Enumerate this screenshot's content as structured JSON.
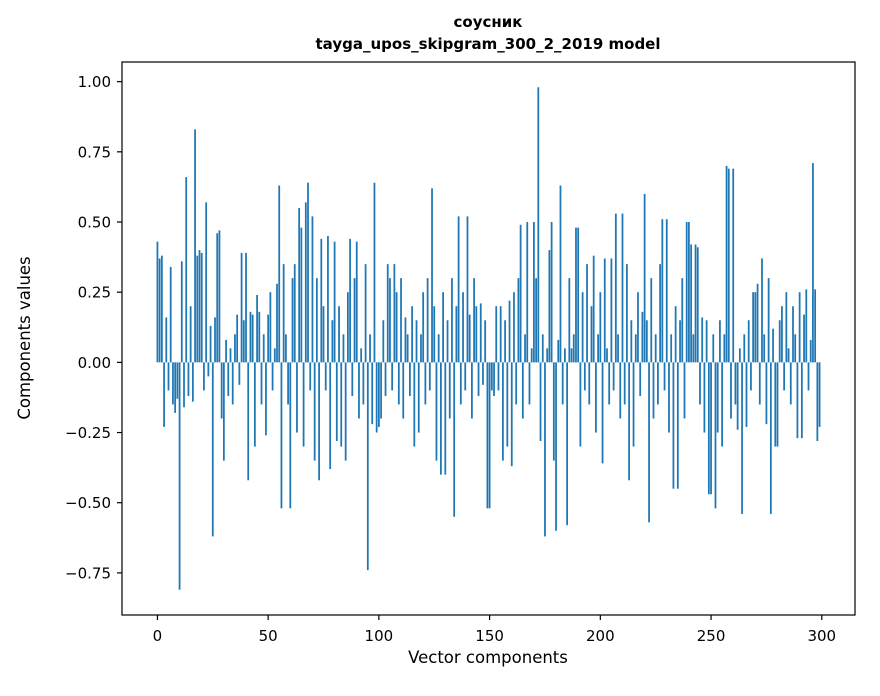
{
  "chart_data": {
    "type": "bar",
    "title_line1": "соусник",
    "title_line2": "tayga_upos_skipgram_300_2_2019 model",
    "xlabel": "Vector components",
    "ylabel": "Components values",
    "bar_color": "#1f77b4",
    "background_color": "#ffffff",
    "grid": false,
    "legend": "none",
    "xlim": [
      -16,
      315
    ],
    "ylim": [
      -0.9,
      1.07
    ],
    "x_ticks": [
      0,
      50,
      100,
      150,
      200,
      250,
      300
    ],
    "x_tick_labels": [
      "0",
      "50",
      "100",
      "150",
      "200",
      "250",
      "300"
    ],
    "y_ticks": [
      -0.75,
      -0.5,
      -0.25,
      0,
      0.25,
      0.5,
      0.75,
      1.0
    ],
    "y_tick_labels": [
      "−0.75",
      "−0.50",
      "−0.25",
      "0.00",
      "0.25",
      "0.50",
      "0.75",
      "1.00"
    ],
    "n_components": 300,
    "values": [
      0.43,
      0.37,
      0.38,
      -0.23,
      0.16,
      -0.1,
      0.34,
      -0.15,
      -0.18,
      -0.13,
      -0.81,
      0.36,
      -0.16,
      0.66,
      -0.12,
      0.2,
      -0.14,
      0.83,
      0.38,
      0.4,
      0.39,
      -0.1,
      0.57,
      -0.05,
      0.13,
      -0.62,
      0.16,
      0.46,
      0.47,
      -0.2,
      -0.35,
      0.08,
      -0.12,
      0.05,
      -0.15,
      0.1,
      0.17,
      -0.08,
      0.39,
      0.15,
      0.39,
      -0.42,
      0.18,
      0.17,
      -0.3,
      0.24,
      0.18,
      -0.15,
      0.1,
      -0.26,
      0.17,
      0.25,
      -0.1,
      0.05,
      0.28,
      0.63,
      -0.52,
      0.35,
      0.1,
      -0.15,
      -0.52,
      0.3,
      0.35,
      -0.25,
      0.55,
      0.48,
      -0.3,
      0.57,
      0.64,
      -0.1,
      0.52,
      -0.35,
      0.3,
      -0.42,
      0.44,
      0.2,
      -0.1,
      0.45,
      -0.38,
      0.15,
      0.43,
      -0.28,
      0.2,
      -0.3,
      0.1,
      -0.35,
      0.25,
      0.44,
      -0.12,
      0.3,
      0.43,
      -0.2,
      0.05,
      -0.15,
      0.35,
      -0.74,
      0.1,
      -0.22,
      0.64,
      -0.25,
      -0.23,
      -0.2,
      0.15,
      -0.12,
      0.35,
      0.3,
      -0.1,
      0.35,
      0.25,
      -0.15,
      0.3,
      -0.2,
      0.16,
      0.1,
      -0.12,
      0.2,
      -0.3,
      0.15,
      -0.25,
      0.1,
      0.25,
      -0.15,
      0.3,
      -0.1,
      0.62,
      0.2,
      -0.35,
      0.1,
      -0.4,
      0.25,
      -0.4,
      0.15,
      -0.2,
      0.3,
      -0.55,
      0.2,
      0.52,
      -0.15,
      0.25,
      -0.1,
      0.52,
      0.17,
      -0.2,
      0.3,
      0.2,
      -0.12,
      0.21,
      -0.08,
      0.15,
      -0.52,
      -0.52,
      -0.1,
      -0.12,
      0.2,
      -0.1,
      0.2,
      -0.35,
      0.15,
      -0.3,
      0.22,
      -0.37,
      0.25,
      -0.15,
      0.3,
      0.49,
      -0.2,
      0.1,
      0.5,
      -0.15,
      0.05,
      0.5,
      0.3,
      0.98,
      -0.28,
      0.1,
      -0.62,
      0.05,
      0.4,
      0.5,
      -0.35,
      -0.6,
      0.08,
      0.63,
      -0.15,
      0.05,
      -0.58,
      0.3,
      0.05,
      0.1,
      0.48,
      0.48,
      -0.3,
      0.25,
      -0.1,
      0.35,
      -0.15,
      0.2,
      0.38,
      -0.25,
      0.1,
      0.25,
      -0.36,
      0.37,
      0.05,
      -0.15,
      0.37,
      -0.1,
      0.53,
      0.1,
      -0.2,
      0.53,
      -0.15,
      0.35,
      -0.42,
      0.15,
      -0.3,
      0.1,
      0.25,
      -0.12,
      0.18,
      0.6,
      0.15,
      -0.57,
      0.3,
      -0.2,
      0.1,
      -0.15,
      0.35,
      0.51,
      -0.1,
      0.51,
      -0.25,
      0.1,
      -0.45,
      0.2,
      -0.45,
      0.15,
      0.3,
      -0.2,
      0.5,
      0.5,
      0.42,
      0.1,
      0.42,
      0.41,
      -0.15,
      0.16,
      -0.25,
      0.15,
      -0.47,
      -0.47,
      0.1,
      -0.52,
      -0.25,
      0.15,
      -0.3,
      0.1,
      0.7,
      0.69,
      -0.2,
      0.69,
      -0.15,
      -0.24,
      0.05,
      -0.54,
      0.1,
      -0.23,
      0.15,
      -0.1,
      0.25,
      0.25,
      0.28,
      -0.15,
      0.37,
      0.1,
      -0.22,
      0.3,
      -0.54,
      0.12,
      -0.3,
      -0.3,
      0.15,
      0.2,
      -0.1,
      0.25,
      0.05,
      -0.15,
      0.2,
      0.1,
      -0.27,
      0.25,
      -0.27,
      0.17,
      0.26,
      -0.1,
      0.08,
      0.71,
      0.26,
      -0.28,
      -0.23
    ]
  }
}
